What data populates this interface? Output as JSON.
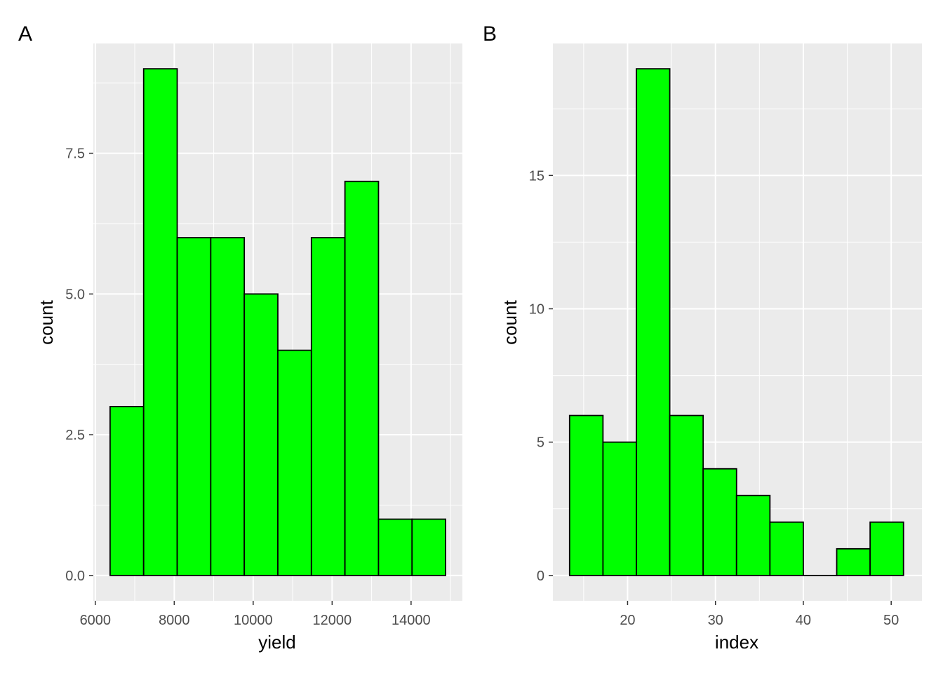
{
  "colors": {
    "panel_bg": "#ebebeb",
    "grid": "#ffffff",
    "bar_fill": "#00ff00",
    "bar_stroke": "#000000",
    "tick": "#333333",
    "tick_label": "#4d4d4d"
  },
  "chart_data": [
    {
      "type": "bar",
      "panel_label": "A",
      "xlabel": "yield",
      "ylabel": "count",
      "xlim": [
        5950,
        15300
      ],
      "ylim": [
        -0.45,
        9.45
      ],
      "x_ticks": [
        6000,
        8000,
        10000,
        12000,
        14000
      ],
      "x_tick_labels": [
        "6000",
        "8000",
        "10000",
        "12000",
        "14000"
      ],
      "y_ticks": [
        0,
        2.5,
        5,
        7.5
      ],
      "y_tick_labels": [
        "0.0",
        "2.5",
        "5.0",
        "7.5"
      ],
      "bin_edges": [
        6375,
        7225,
        8075,
        8925,
        9775,
        10625,
        11475,
        12325,
        13175,
        14025,
        14875
      ],
      "values": [
        3,
        9,
        6,
        6,
        5,
        4,
        6,
        7,
        1,
        1
      ]
    },
    {
      "type": "bar",
      "panel_label": "B",
      "xlabel": "index",
      "ylabel": "count",
      "xlim": [
        11.5,
        53.5
      ],
      "ylim": [
        -0.95,
        19.95
      ],
      "x_ticks": [
        20,
        30,
        40,
        50
      ],
      "x_tick_labels": [
        "20",
        "30",
        "40",
        "50"
      ],
      "y_ticks": [
        0,
        5,
        10,
        15
      ],
      "y_tick_labels": [
        "0",
        "5",
        "10",
        "15"
      ],
      "bin_edges": [
        13.4,
        17.2,
        21.0,
        24.8,
        28.6,
        32.4,
        36.2,
        40.0,
        43.8,
        47.6,
        51.4
      ],
      "values": [
        6,
        5,
        19,
        6,
        4,
        3,
        2,
        0,
        1,
        2
      ]
    }
  ]
}
